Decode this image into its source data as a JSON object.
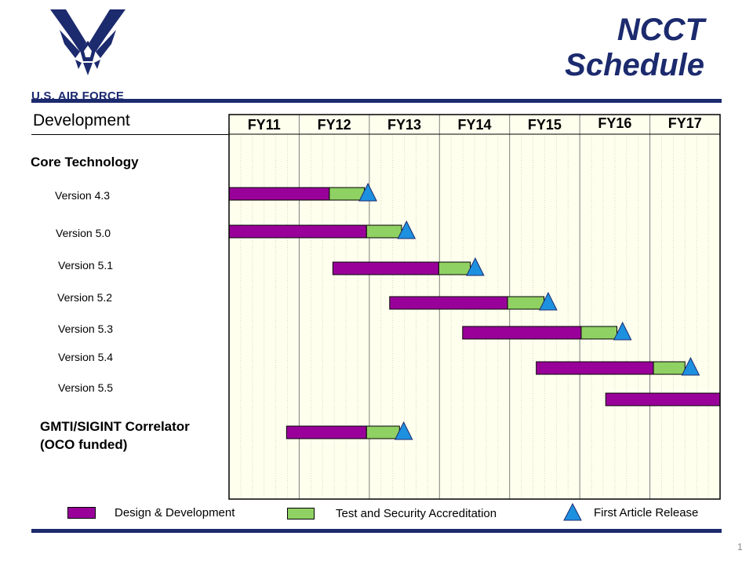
{
  "header": {
    "logo_text": "U.S. AIR FORCE",
    "title_line1": "NCCT",
    "title_line2": "Schedule"
  },
  "section": {
    "title": "Development"
  },
  "groups": [
    {
      "label_line1": "Core Technology",
      "label_line2": ""
    },
    {
      "label_line1": "GMTI/SIGINT Correlator",
      "label_line2": "(OCO funded)"
    }
  ],
  "chart_data": {
    "type": "gantt",
    "fiscal_years": [
      "FY11",
      "FY12",
      "FY13",
      "FY14",
      "FY15",
      "FY16",
      "FY17"
    ],
    "rows": [
      {
        "label": "Version 4.3",
        "design_start": 0.0,
        "design_end": 1.43,
        "test_end": 1.93,
        "release": 1.98
      },
      {
        "label": "Version 5.0",
        "design_start": 0.0,
        "design_end": 1.96,
        "test_end": 2.46,
        "release": 2.53
      },
      {
        "label": "Version 5.1",
        "design_start": 1.48,
        "design_end": 2.99,
        "test_end": 3.44,
        "release": 3.51
      },
      {
        "label": "Version 5.2",
        "design_start": 2.29,
        "design_end": 3.97,
        "test_end": 4.49,
        "release": 4.55
      },
      {
        "label": "Version 5.3",
        "design_start": 3.33,
        "design_end": 5.02,
        "test_end": 5.53,
        "release": 5.61
      },
      {
        "label": "Version 5.4",
        "design_start": 4.38,
        "design_end": 6.05,
        "test_end": 6.5,
        "release": 6.58
      },
      {
        "label": "Version 5.5",
        "design_start": 5.37,
        "design_end": 7.0,
        "test_end": null,
        "release": null
      },
      {
        "label": "GMTI/SIGINT Correlator (OCO funded)",
        "design_start": 0.82,
        "design_end": 1.96,
        "test_end": 2.43,
        "release": 2.49
      }
    ],
    "colors": {
      "design": "#990099",
      "test": "#8fd163",
      "release": "#1e90e0",
      "plot_bg": "#ffffee",
      "grid_major": "#808080",
      "grid_minor": "#d8d8c8"
    }
  },
  "legend": {
    "design_label": "Design & Development",
    "test_label": "Test and Security Accreditation",
    "release_label": "First Article Release"
  },
  "page_number": "1"
}
